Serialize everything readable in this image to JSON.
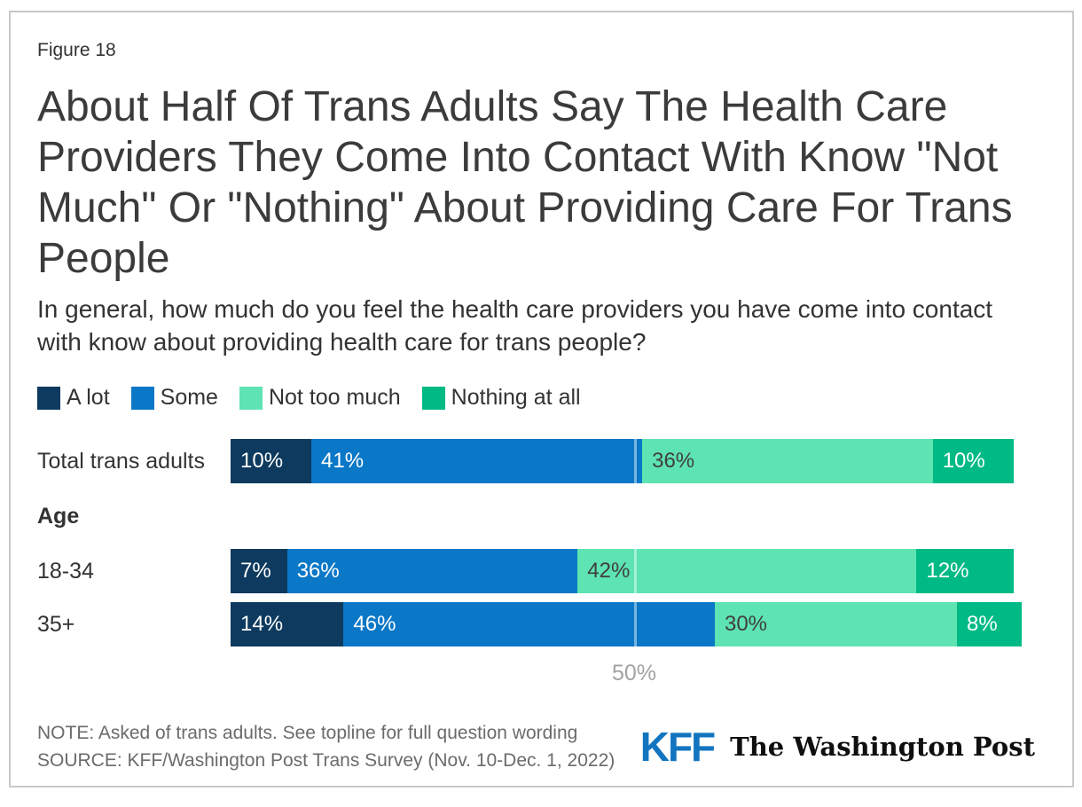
{
  "figure_label": "Figure 18",
  "title": "About Half Of Trans Adults Say The Health Care Providers They Come Into Contact With Know \"Not Much\" Or \"Nothing\" About Providing Care For Trans People",
  "subtitle": "In general, how much do you feel the health care providers you have come into contact with know about providing health care for trans people?",
  "colors": {
    "a_lot": "#0d3a5e",
    "some": "#0a77c7",
    "not_too_much": "#5ee3b2",
    "nothing_at_all": "#00ba85",
    "kff_blue": "#1375c0",
    "gridline_label": "#a2a2a2"
  },
  "chart_data": {
    "type": "bar",
    "stacked": true,
    "orientation": "horizontal",
    "categories": [
      "Total trans adults",
      "18-34",
      "35+"
    ],
    "group_header": "Age",
    "group_header_before_index": 1,
    "series": [
      {
        "name": "A lot",
        "color": "#0d3a5e",
        "label_color": "#ffffff",
        "values": [
          10,
          7,
          14
        ]
      },
      {
        "name": "Some",
        "color": "#0a77c7",
        "label_color": "#ffffff",
        "values": [
          41,
          36,
          46
        ]
      },
      {
        "name": "Not too much",
        "color": "#5ee3b2",
        "label_color": "#3f3f3f",
        "values": [
          36,
          42,
          30
        ]
      },
      {
        "name": "Nothing at all",
        "color": "#00ba85",
        "label_color": "#ffffff",
        "values": [
          10,
          12,
          8
        ]
      }
    ],
    "xlim": [
      0,
      100
    ],
    "gridline": {
      "value": 50,
      "label": "50%"
    },
    "legend_position": "top",
    "value_suffix": "%"
  },
  "footer": {
    "note": "NOTE: Asked of trans adults. See topline for full question wording",
    "source": "SOURCE: KFF/Washington Post Trans Survey (Nov. 10-Dec. 1, 2022)",
    "kff_logo": "KFF",
    "wapo_logo": "The Washington Post"
  }
}
